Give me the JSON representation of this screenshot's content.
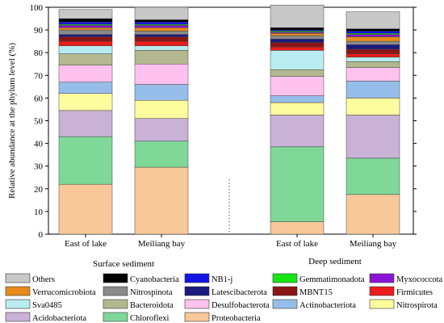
{
  "chart_data": {
    "type": "bar",
    "stacked": true,
    "ylabel": "Relative abundance at the phylum level (%)",
    "ylim": [
      0,
      100
    ],
    "yticks": [
      0,
      10,
      20,
      30,
      40,
      50,
      60,
      70,
      80,
      90,
      100
    ],
    "categories": [
      "East of lake",
      "Meiliang bay",
      "East of lake",
      "Meiliang bay"
    ],
    "groups": [
      {
        "label": "Surface sediment",
        "categories": [
          0,
          1
        ]
      },
      {
        "label": "Deep sediment",
        "categories": [
          2,
          3
        ]
      }
    ],
    "series": [
      {
        "name": "Proteobacteria",
        "color": "#f8c89a",
        "values": [
          22,
          29.5,
          5.5,
          17.5
        ]
      },
      {
        "name": "Chloroflexi",
        "color": "#7fd898",
        "values": [
          21,
          11.5,
          33,
          16
        ]
      },
      {
        "name": "Acidobacteriota",
        "color": "#c9b2d6",
        "values": [
          11.5,
          10,
          14,
          19
        ]
      },
      {
        "name": "Nitrospirota",
        "color": "#fdfc9e",
        "values": [
          7.5,
          8,
          5.5,
          7.5
        ]
      },
      {
        "name": "Actinobacteriota",
        "color": "#97bdea",
        "values": [
          5,
          7,
          3,
          7.5
        ]
      },
      {
        "name": "Desulfobacterota",
        "color": "#ffc2ee",
        "values": [
          7.5,
          9,
          8.5,
          6
        ]
      },
      {
        "name": "Bacteroidota",
        "color": "#b4b890",
        "values": [
          5,
          6,
          3,
          2.5
        ]
      },
      {
        "name": "Sva0485",
        "color": "#b8ecf0",
        "values": [
          3.5,
          2,
          8.5,
          2
        ]
      },
      {
        "name": "Firmicutes",
        "color": "#ea1c1c",
        "values": [
          2,
          2,
          1.5,
          1.5
        ]
      },
      {
        "name": "MBNT15",
        "color": "#8a1515",
        "values": [
          2,
          2,
          2,
          2
        ]
      },
      {
        "name": "Latescibacterota",
        "color": "#1a1a80",
        "values": [
          1,
          1,
          1.5,
          2
        ]
      },
      {
        "name": "Nitrospinota",
        "color": "#8a8a8a",
        "values": [
          2,
          1.5,
          1.5,
          1.5
        ]
      },
      {
        "name": "Verrucomicrobiota",
        "color": "#e88a1a",
        "values": [
          1,
          1.5,
          1,
          2
        ]
      },
      {
        "name": "Myxococcota",
        "color": "#8a14d6",
        "values": [
          1,
          1,
          0.5,
          1
        ]
      },
      {
        "name": "Gemmatimonadota",
        "color": "#14e614",
        "values": [
          0.5,
          0.5,
          0.5,
          0.5
        ]
      },
      {
        "name": "NB1-j",
        "color": "#1414e6",
        "values": [
          1,
          1,
          0.5,
          1
        ]
      },
      {
        "name": "Cyanobacteria",
        "color": "#000000",
        "values": [
          1.5,
          1,
          1,
          1
        ]
      },
      {
        "name": "Others",
        "color": "#c8c8c8",
        "values": [
          4,
          5.5,
          10,
          7.5
        ]
      }
    ],
    "legend": {
      "placement": "bottom",
      "rows": [
        [
          "Others",
          "Cyanobacteria",
          "NB1-j",
          "Gemmatimonadota",
          "Myxococcota"
        ],
        [
          "Verrucomicrobiota",
          "Nitrospinota",
          "Latescibacterota",
          "MBNT15",
          "Firmicutes"
        ],
        [
          "Sva0485",
          "Bacteroidota",
          "Desulfobacterota",
          "Actinobacteriota",
          "Nitrospirota"
        ],
        [
          "Acidobacteriota",
          "Chloroflexi",
          "Proteobacteria"
        ]
      ]
    }
  }
}
